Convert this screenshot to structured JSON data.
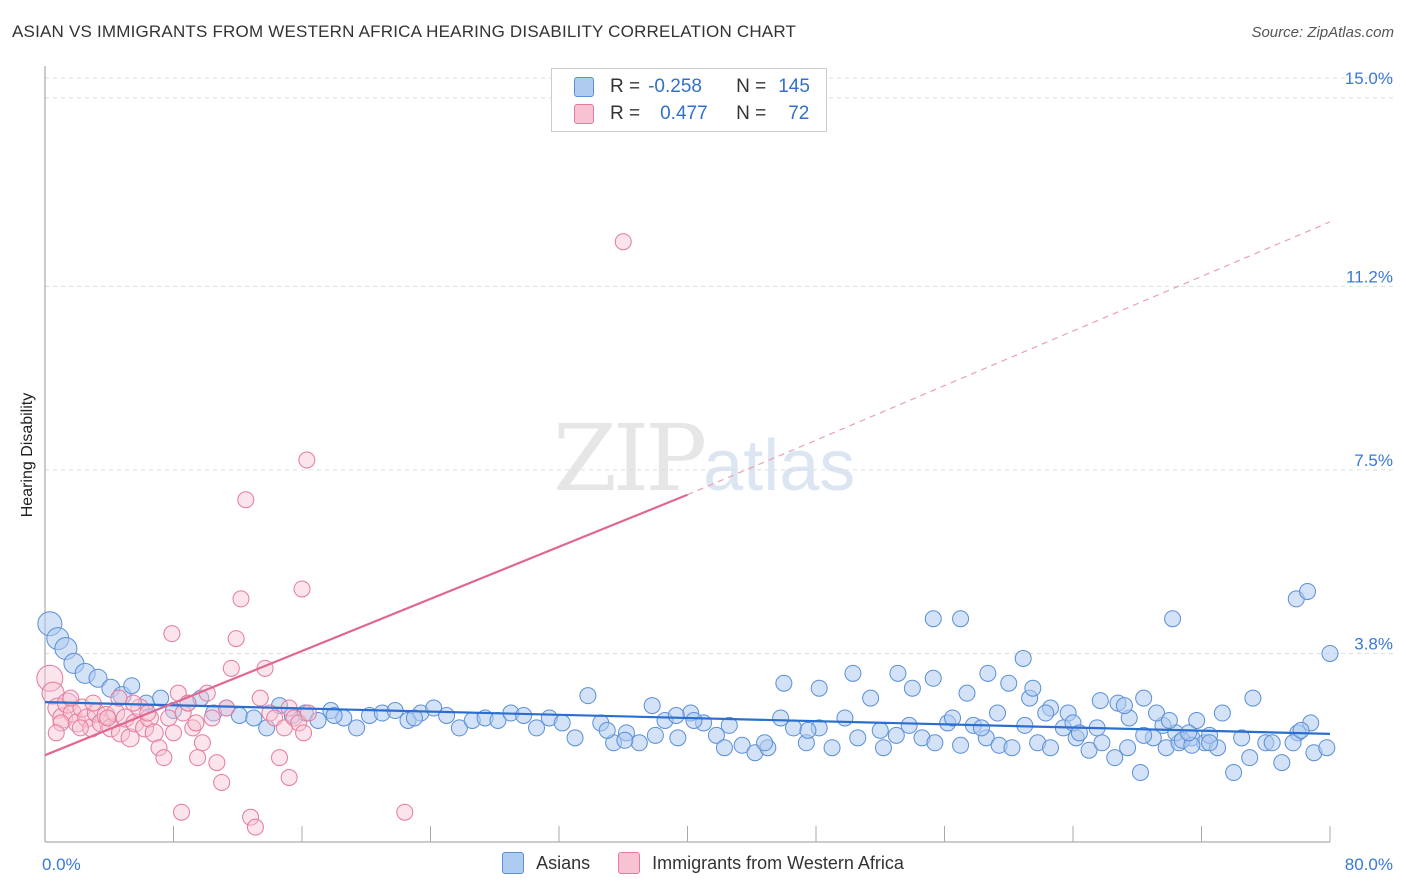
{
  "title": "ASIAN VS IMMIGRANTS FROM WESTERN AFRICA HEARING DISABILITY CORRELATION CHART",
  "source": "Source: ZipAtlas.com",
  "watermark": {
    "zip": "ZIP",
    "atlas": "atlas"
  },
  "legend": {
    "rows": [
      {
        "r_label": "R =",
        "r_value": "-0.258",
        "n_label": "N =",
        "n_value": "145",
        "color": "#aecbf0",
        "border": "#5a8fd6"
      },
      {
        "r_label": "R =",
        "r_value": "0.477",
        "n_label": "N =",
        "n_value": "72",
        "color": "#f7c3d2",
        "border": "#e57a9c"
      }
    ]
  },
  "bottom_legend": [
    {
      "label": "Asians",
      "color": "#aecbf0",
      "border": "#5a8fd6"
    },
    {
      "label": "Immigrants from Western Africa",
      "color": "#f7c3d2",
      "border": "#e57a9c"
    }
  ],
  "chart_data": {
    "type": "scatter",
    "title": "ASIAN VS IMMIGRANTS FROM WESTERN AFRICA HEARING DISABILITY CORRELATION CHART",
    "xlabel": "",
    "ylabel": "Hearing Disability",
    "x_tick_labels": [
      "0.0%",
      "80.0%"
    ],
    "y_tick_labels": [
      "3.8%",
      "7.5%",
      "11.2%",
      "15.0%"
    ],
    "y_ticks": [
      3.8,
      7.5,
      11.2,
      15.0
    ],
    "xlim": [
      0,
      80
    ],
    "ylim": [
      0,
      15.4
    ],
    "grid": true,
    "colors": {
      "asian": "#3a78d4",
      "wafrica": "#e06890",
      "axis_label": "#3a78d4"
    },
    "series": [
      {
        "name": "Asians",
        "r": -0.258,
        "n": 145,
        "trend": {
          "x1": 0,
          "y1": 2.82,
          "x2": 80,
          "y2": 2.18
        },
        "points": [
          [
            0.3,
            4.4,
            12
          ],
          [
            0.8,
            4.1,
            11
          ],
          [
            1.3,
            3.9,
            11
          ],
          [
            1.8,
            3.6,
            10
          ],
          [
            2.5,
            3.4,
            10
          ],
          [
            3.3,
            3.3,
            9
          ],
          [
            4.1,
            3.1,
            9
          ],
          [
            4.8,
            2.95,
            9
          ],
          [
            5.4,
            3.15,
            8
          ],
          [
            6.3,
            2.8,
            8
          ],
          [
            7.2,
            2.9,
            8
          ],
          [
            8.0,
            2.65,
            8
          ],
          [
            8.9,
            2.8,
            8
          ],
          [
            9.7,
            2.9,
            8
          ],
          [
            10.5,
            2.6,
            8
          ],
          [
            11.3,
            2.7,
            8
          ],
          [
            12.1,
            2.55,
            8
          ],
          [
            13.0,
            2.5,
            8
          ],
          [
            13.8,
            2.3,
            8
          ],
          [
            14.6,
            2.75,
            8
          ],
          [
            15.4,
            2.55,
            8
          ],
          [
            16.2,
            2.6,
            8
          ],
          [
            17.0,
            2.45,
            8
          ],
          [
            17.8,
            2.65,
            8
          ],
          [
            18.6,
            2.5,
            8
          ],
          [
            19.4,
            2.3,
            8
          ],
          [
            20.2,
            2.55,
            8
          ],
          [
            21.0,
            2.6,
            8
          ],
          [
            21.8,
            2.65,
            8
          ],
          [
            22.6,
            2.45,
            8
          ],
          [
            23.4,
            2.6,
            8
          ],
          [
            24.2,
            2.7,
            8
          ],
          [
            25.0,
            2.55,
            8
          ],
          [
            25.8,
            2.3,
            8
          ],
          [
            26.6,
            2.45,
            8
          ],
          [
            27.4,
            2.5,
            8
          ],
          [
            28.2,
            2.45,
            8
          ],
          [
            29.0,
            2.6,
            8
          ],
          [
            29.8,
            2.55,
            8
          ],
          [
            30.6,
            2.3,
            8
          ],
          [
            31.4,
            2.5,
            8
          ],
          [
            32.2,
            2.4,
            8
          ],
          [
            33.0,
            2.1,
            8
          ],
          [
            33.8,
            2.95,
            8
          ],
          [
            34.6,
            2.4,
            8
          ],
          [
            35.4,
            2.0,
            8
          ],
          [
            36.2,
            2.2,
            8
          ],
          [
            37.0,
            2.0,
            8
          ],
          [
            37.8,
            2.75,
            8
          ],
          [
            38.6,
            2.45,
            8
          ],
          [
            39.4,
            2.1,
            8
          ],
          [
            40.2,
            2.6,
            8
          ],
          [
            41.0,
            2.4,
            8
          ],
          [
            41.8,
            2.15,
            8
          ],
          [
            42.6,
            2.35,
            8
          ],
          [
            43.4,
            1.95,
            8
          ],
          [
            44.2,
            1.8,
            8
          ],
          [
            45.0,
            1.9,
            8
          ],
          [
            45.8,
            2.5,
            8
          ],
          [
            46.6,
            2.3,
            8
          ],
          [
            47.4,
            2.0,
            8
          ],
          [
            48.2,
            2.3,
            8
          ],
          [
            49.0,
            1.9,
            8
          ],
          [
            49.8,
            2.5,
            8
          ],
          [
            50.6,
            2.1,
            8
          ],
          [
            51.4,
            2.9,
            8
          ],
          [
            52.2,
            1.9,
            8
          ],
          [
            53.0,
            2.15,
            8
          ],
          [
            53.8,
            2.35,
            8
          ],
          [
            54.6,
            2.1,
            8
          ],
          [
            55.4,
            2.0,
            8
          ],
          [
            56.2,
            2.4,
            8
          ],
          [
            57.0,
            1.95,
            8
          ],
          [
            57.8,
            2.35,
            8
          ],
          [
            58.6,
            2.1,
            8
          ],
          [
            59.4,
            1.95,
            8
          ],
          [
            60.2,
            1.9,
            8
          ],
          [
            61.0,
            2.35,
            8
          ],
          [
            61.8,
            2.0,
            8
          ],
          [
            62.6,
            1.9,
            8
          ],
          [
            63.4,
            2.3,
            8
          ],
          [
            64.2,
            2.1,
            8
          ],
          [
            65.0,
            1.85,
            8
          ],
          [
            65.8,
            2.0,
            8
          ],
          [
            66.6,
            1.7,
            8
          ],
          [
            67.4,
            1.9,
            8
          ],
          [
            68.2,
            1.4,
            8
          ],
          [
            69.0,
            2.1,
            8
          ],
          [
            69.8,
            1.9,
            8
          ],
          [
            70.6,
            2.0,
            8
          ],
          [
            71.4,
            2.1,
            8
          ],
          [
            72.2,
            2.0,
            8
          ],
          [
            73.0,
            1.9,
            8
          ],
          [
            74.0,
            1.4,
            8
          ],
          [
            75.0,
            1.7,
            8
          ],
          [
            76.0,
            2.0,
            8
          ],
          [
            77.0,
            1.6,
            8
          ],
          [
            78.0,
            2.2,
            8
          ],
          [
            79.0,
            1.8,
            8
          ],
          [
            46.0,
            3.2,
            8
          ],
          [
            48.2,
            3.1,
            8
          ],
          [
            50.3,
            3.4,
            8
          ],
          [
            53.1,
            3.4,
            8
          ],
          [
            55.3,
            3.3,
            8
          ],
          [
            57.4,
            3.0,
            8
          ],
          [
            60.0,
            3.2,
            8
          ],
          [
            61.3,
            2.9,
            8
          ],
          [
            62.6,
            2.7,
            8
          ],
          [
            63.7,
            2.6,
            8
          ],
          [
            64.0,
            2.4,
            8
          ],
          [
            65.5,
            2.3,
            8
          ],
          [
            66.8,
            2.8,
            8
          ],
          [
            67.5,
            2.5,
            8
          ],
          [
            68.4,
            2.9,
            8
          ],
          [
            69.6,
            2.35,
            8
          ],
          [
            70.4,
            2.2,
            8
          ],
          [
            71.7,
            2.45,
            8
          ],
          [
            72.5,
            2.15,
            8
          ],
          [
            73.3,
            2.6,
            8
          ],
          [
            74.5,
            2.1,
            8
          ],
          [
            55.3,
            4.5,
            8
          ],
          [
            57.0,
            4.5,
            8
          ],
          [
            58.7,
            3.4,
            8
          ],
          [
            60.9,
            3.7,
            8
          ],
          [
            61.5,
            3.1,
            8
          ],
          [
            62.3,
            2.6,
            8
          ],
          [
            64.4,
            2.2,
            8
          ],
          [
            65.7,
            2.85,
            8
          ],
          [
            67.2,
            2.75,
            8
          ],
          [
            68.4,
            2.15,
            8
          ],
          [
            69.2,
            2.6,
            8
          ],
          [
            70.0,
            2.45,
            8
          ],
          [
            70.8,
            2.05,
            8
          ],
          [
            71.4,
            1.95,
            8
          ],
          [
            72.5,
            2.0,
            8
          ],
          [
            70.2,
            4.5,
            8
          ],
          [
            71.2,
            2.2,
            8
          ],
          [
            75.2,
            2.9,
            8
          ],
          [
            77.7,
            2.0,
            8
          ],
          [
            78.8,
            2.4,
            8
          ],
          [
            79.8,
            1.9,
            8
          ],
          [
            35.0,
            2.25,
            8
          ],
          [
            36.1,
            2.05,
            8
          ],
          [
            38.0,
            2.15,
            8
          ],
          [
            39.3,
            2.55,
            8
          ],
          [
            40.4,
            2.45,
            8
          ],
          [
            42.3,
            1.9,
            8
          ],
          [
            44.8,
            2.0,
            8
          ],
          [
            47.5,
            2.25,
            8
          ],
          [
            52.0,
            2.25,
            8
          ],
          [
            54.0,
            3.1,
            8
          ],
          [
            56.5,
            2.5,
            8
          ],
          [
            58.3,
            2.3,
            8
          ],
          [
            59.3,
            2.6,
            8
          ],
          [
            76.4,
            2.0,
            8
          ],
          [
            78.2,
            2.25,
            8
          ],
          [
            77.9,
            4.9,
            8
          ],
          [
            78.6,
            5.05,
            8
          ],
          [
            80.0,
            3.8,
            8
          ],
          [
            18.0,
            2.55,
            8
          ],
          [
            23.0,
            2.5,
            8
          ]
        ]
      },
      {
        "name": "Immigrants from Western Africa",
        "r": 0.477,
        "n": 72,
        "trend": {
          "x1": 0,
          "y1": 1.75,
          "x2": 40,
          "y2": 7.0,
          "dash_x2": 80,
          "dash_y2": 12.5
        },
        "points": [
          [
            0.3,
            3.3,
            13
          ],
          [
            0.5,
            3.0,
            11
          ],
          [
            0.8,
            2.7,
            10
          ],
          [
            1.1,
            2.5,
            10
          ],
          [
            1.4,
            2.8,
            10
          ],
          [
            1.7,
            2.6,
            9
          ],
          [
            2.0,
            2.4,
            9
          ],
          [
            2.3,
            2.7,
            9
          ],
          [
            2.6,
            2.5,
            9
          ],
          [
            2.9,
            2.3,
            9
          ],
          [
            3.2,
            2.6,
            9
          ],
          [
            3.5,
            2.4,
            9
          ],
          [
            3.8,
            2.55,
            9
          ],
          [
            4.1,
            2.3,
            9
          ],
          [
            4.4,
            2.6,
            9
          ],
          [
            4.7,
            2.2,
            9
          ],
          [
            5.0,
            2.5,
            9
          ],
          [
            5.3,
            2.1,
            9
          ],
          [
            5.6,
            2.4,
            9
          ],
          [
            5.9,
            2.7,
            9
          ],
          [
            6.2,
            2.3,
            9
          ],
          [
            6.5,
            2.5,
            9
          ],
          [
            6.8,
            2.2,
            9
          ],
          [
            7.1,
            1.9,
            8
          ],
          [
            7.4,
            1.7,
            8
          ],
          [
            7.7,
            2.5,
            8
          ],
          [
            8.0,
            2.2,
            8
          ],
          [
            8.3,
            3.0,
            8
          ],
          [
            8.6,
            2.6,
            8
          ],
          [
            8.9,
            2.8,
            8
          ],
          [
            9.2,
            2.3,
            8
          ],
          [
            9.5,
            1.7,
            8
          ],
          [
            9.8,
            2.0,
            8
          ],
          [
            10.1,
            3.0,
            8
          ],
          [
            10.4,
            2.5,
            8
          ],
          [
            10.7,
            1.6,
            8
          ],
          [
            11.0,
            1.2,
            8
          ],
          [
            11.3,
            2.7,
            8
          ],
          [
            11.6,
            3.5,
            8
          ],
          [
            11.9,
            4.1,
            8
          ],
          [
            12.2,
            4.9,
            8
          ],
          [
            12.5,
            6.9,
            8
          ],
          [
            12.8,
            0.5,
            8
          ],
          [
            13.1,
            0.3,
            8
          ],
          [
            13.4,
            2.9,
            8
          ],
          [
            13.7,
            3.5,
            8
          ],
          [
            14.0,
            2.6,
            8
          ],
          [
            14.3,
            2.5,
            8
          ],
          [
            14.6,
            1.7,
            8
          ],
          [
            14.9,
            2.3,
            8
          ],
          [
            15.2,
            2.7,
            8
          ],
          [
            15.5,
            2.5,
            8
          ],
          [
            15.8,
            2.4,
            8
          ],
          [
            16.1,
            2.2,
            8
          ],
          [
            16.4,
            2.6,
            8
          ],
          [
            36.0,
            12.1,
            8
          ],
          [
            16.0,
            5.1,
            8
          ],
          [
            16.3,
            7.7,
            8
          ],
          [
            15.2,
            1.3,
            8
          ],
          [
            22.4,
            0.6,
            8
          ],
          [
            8.5,
            0.6,
            8
          ],
          [
            7.9,
            4.2,
            8
          ],
          [
            6.4,
            2.6,
            8
          ],
          [
            5.5,
            2.8,
            8
          ],
          [
            4.6,
            2.9,
            8
          ],
          [
            3.9,
            2.5,
            8
          ],
          [
            3.0,
            2.8,
            8
          ],
          [
            2.2,
            2.3,
            8
          ],
          [
            1.6,
            2.9,
            8
          ],
          [
            1.0,
            2.4,
            8
          ],
          [
            0.7,
            2.2,
            8
          ],
          [
            9.4,
            2.4,
            8
          ]
        ]
      }
    ]
  }
}
